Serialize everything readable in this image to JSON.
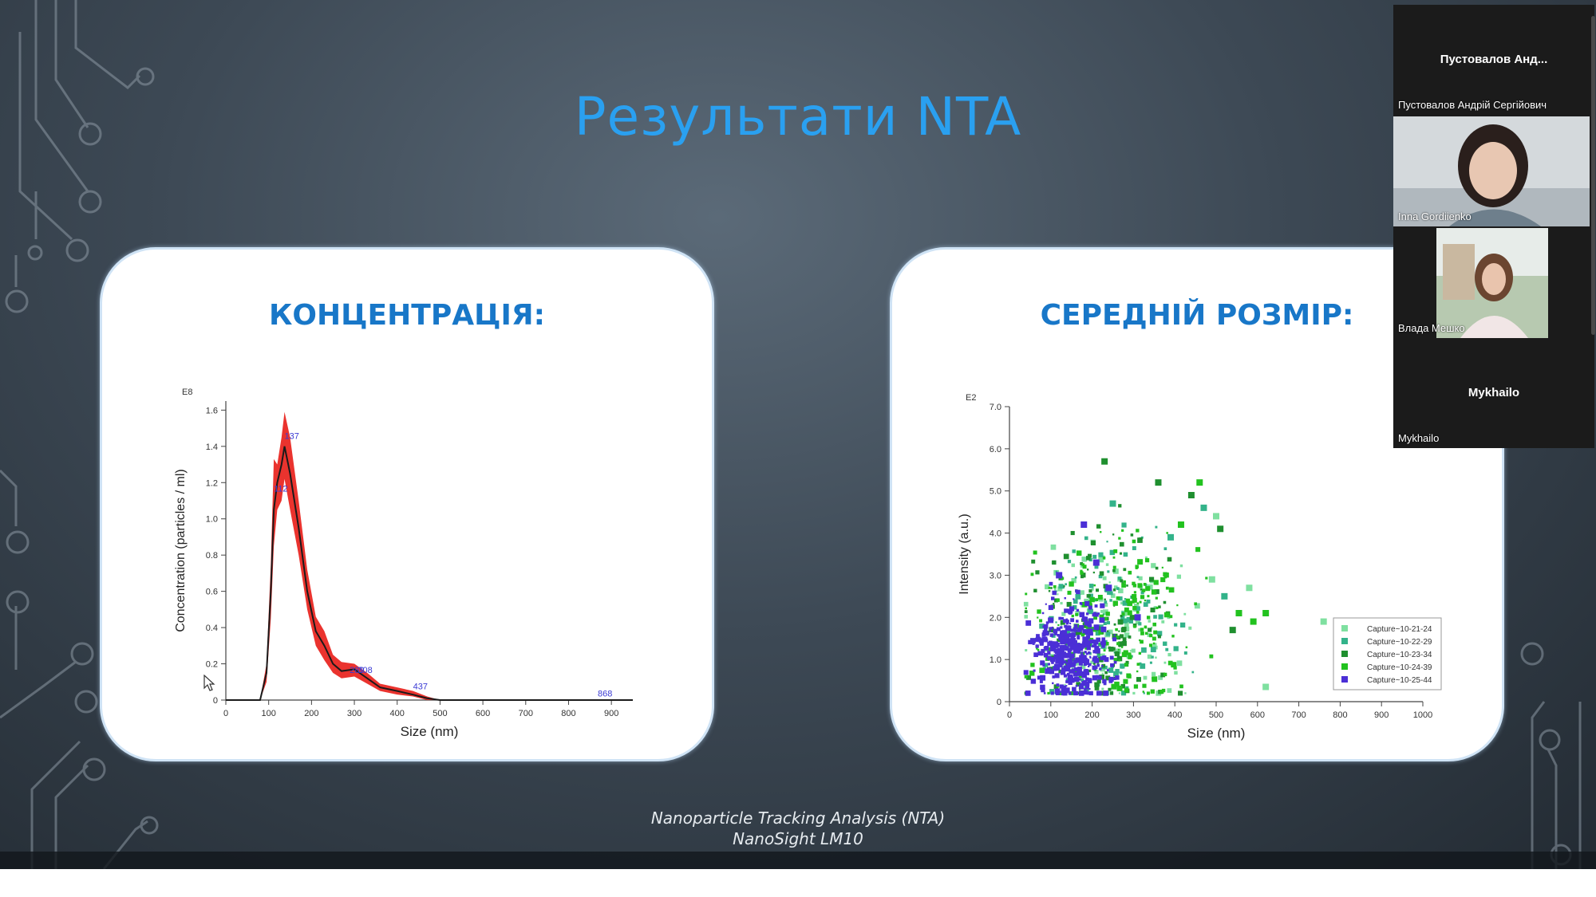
{
  "slide": {
    "title": "Результати NTA",
    "caption_line1": "Nanoparticle Tracking Analysis (NTA)",
    "caption_line2": "NanoSight LM10",
    "accent_color": "#2aa0f0",
    "heading_color": "#1877c8"
  },
  "left_panel": {
    "heading": "КОНЦЕНТРАЦІЯ:"
  },
  "right_panel": {
    "heading": "СЕРЕДНІЙ РОЗМІР:"
  },
  "chart_data": [
    {
      "type": "line",
      "title": "",
      "xlabel": "Size (nm)",
      "ylabel": "Concentration (particles / ml)",
      "y_multiplier_label": "E8",
      "xlim": [
        0,
        950
      ],
      "ylim": [
        0,
        1.65
      ],
      "x_ticks": [
        "0",
        "100",
        "200",
        "300",
        "400",
        "500",
        "600",
        "700",
        "800",
        "900"
      ],
      "y_ticks": [
        "0",
        "0.2",
        "0.4",
        "0.6",
        "0.8",
        "1.0",
        "1.2",
        "1.4",
        "1.6"
      ],
      "x": [
        0,
        80,
        95,
        105,
        112,
        120,
        130,
        137,
        150,
        170,
        190,
        210,
        230,
        250,
        270,
        300,
        330,
        360,
        400,
        437,
        470,
        500,
        600,
        950
      ],
      "mean": [
        0,
        0,
        0.15,
        0.6,
        1.05,
        1.2,
        1.3,
        1.4,
        1.25,
        0.95,
        0.6,
        0.38,
        0.3,
        0.2,
        0.16,
        0.17,
        0.12,
        0.07,
        0.05,
        0.03,
        0.01,
        0,
        0,
        0
      ],
      "upper": [
        0,
        0,
        0.2,
        0.75,
        1.33,
        1.3,
        1.45,
        1.59,
        1.45,
        1.1,
        0.72,
        0.46,
        0.38,
        0.25,
        0.21,
        0.2,
        0.15,
        0.09,
        0.07,
        0.05,
        0.02,
        0,
        0,
        0
      ],
      "lower": [
        0,
        0,
        0.1,
        0.45,
        0.85,
        1.05,
        1.1,
        1.22,
        1.05,
        0.8,
        0.5,
        0.3,
        0.22,
        0.15,
        0.12,
        0.13,
        0.09,
        0.05,
        0.03,
        0.02,
        0,
        0,
        0,
        0
      ],
      "peak_labels": [
        {
          "text": "137",
          "x": 137,
          "y": 1.44
        },
        {
          "text": "112",
          "x": 112,
          "y": 1.15
        },
        {
          "text": "289",
          "x": 289,
          "y": 0.15
        },
        {
          "text": "308",
          "x": 308,
          "y": 0.15
        },
        {
          "text": "437",
          "x": 437,
          "y": 0.06
        },
        {
          "text": "868",
          "x": 868,
          "y": 0.02
        }
      ],
      "band_color": "#e8221c",
      "line_color": "#1a1a1a"
    },
    {
      "type": "scatter",
      "title": "",
      "xlabel": "Size (nm)",
      "ylabel": "Intensity (a.u.)",
      "y_multiplier_label": "E2",
      "xlim": [
        0,
        1000
      ],
      "ylim": [
        0,
        7.0
      ],
      "x_ticks": [
        "0",
        "100",
        "200",
        "300",
        "400",
        "500",
        "600",
        "700",
        "800",
        "900",
        "1000"
      ],
      "y_ticks": [
        "0",
        "1.0",
        "2.0",
        "3.0",
        "4.0",
        "5.0",
        "6.0",
        "7.0"
      ],
      "series": [
        {
          "name": "Capture~10-21-24",
          "color": "#7fe0a0",
          "center": [
            240,
            1.6
          ],
          "spread": [
            110,
            1.1
          ],
          "count": 140,
          "points": [
            [
              580,
              2.7
            ],
            [
              500,
              4.4
            ],
            [
              490,
              2.9
            ],
            [
              620,
              0.35
            ],
            [
              760,
              1.9
            ]
          ]
        },
        {
          "name": "Capture~10-22-29",
          "color": "#33b38a",
          "center": [
            230,
            1.7
          ],
          "spread": [
            100,
            1.2
          ],
          "count": 140,
          "points": [
            [
              470,
              4.6
            ],
            [
              520,
              2.5
            ],
            [
              390,
              3.9
            ],
            [
              250,
              4.7
            ]
          ]
        },
        {
          "name": "Capture~10-23-34",
          "color": "#1f8f2f",
          "center": [
            220,
            1.8
          ],
          "spread": [
            100,
            1.3
          ],
          "count": 150,
          "points": [
            [
              230,
              5.7
            ],
            [
              360,
              5.2
            ],
            [
              440,
              4.9
            ],
            [
              510,
              4.1
            ],
            [
              540,
              1.7
            ]
          ]
        },
        {
          "name": "Capture~10-24-39",
          "color": "#22c21f",
          "center": [
            250,
            1.9
          ],
          "spread": [
            120,
            1.4
          ],
          "count": 180,
          "points": [
            [
              460,
              5.2
            ],
            [
              415,
              4.2
            ],
            [
              555,
              2.1
            ],
            [
              590,
              1.9
            ],
            [
              620,
              2.1
            ]
          ]
        },
        {
          "name": "Capture~10-25-44",
          "color": "#4b2fd6",
          "center": [
            150,
            1.2
          ],
          "spread": [
            55,
            0.75
          ],
          "count": 420,
          "points": [
            [
              180,
              4.2
            ],
            [
              240,
              2.7
            ],
            [
              310,
              2.0
            ],
            [
              210,
              3.3
            ],
            [
              120,
              3.0
            ]
          ]
        }
      ],
      "legend_position": "right"
    }
  ],
  "participants": [
    {
      "top_name": "Пустовалов  Анд...",
      "label": "Пустовалов Андрій Сергійович",
      "video": false
    },
    {
      "label": "Inna Gordiienko",
      "video": true
    },
    {
      "label": "Влада Мешко",
      "video": true
    },
    {
      "top_name": "Mykhailo",
      "label": "Mykhailo",
      "video": false
    }
  ]
}
